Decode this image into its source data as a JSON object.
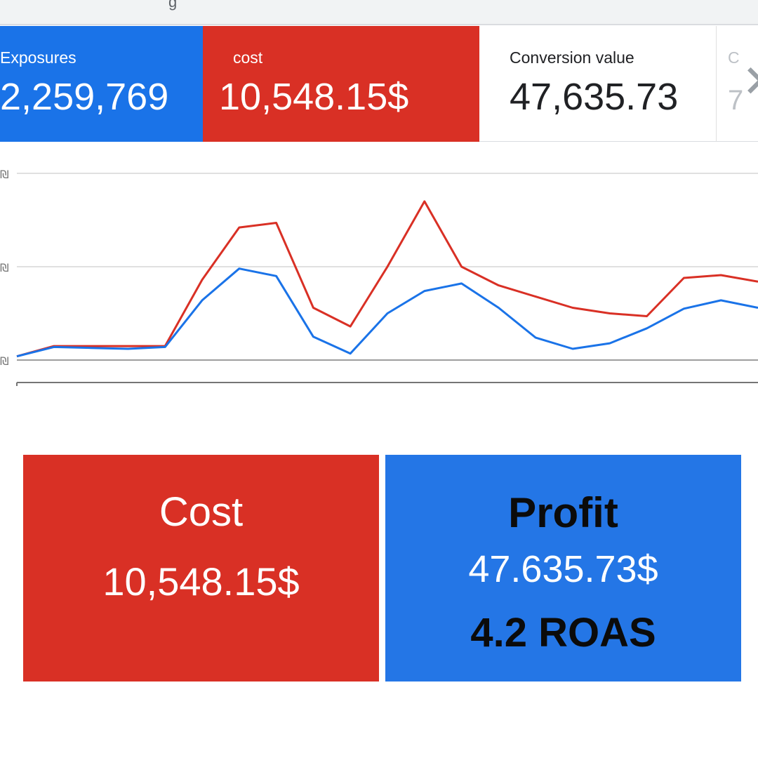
{
  "metrics": {
    "exposures": {
      "label": "Exposures",
      "value": "2,259,769"
    },
    "cost": {
      "label": "cost",
      "value": "10,548.15$"
    },
    "conversion_value": {
      "label": "Conversion value",
      "value": "47,635.73"
    },
    "partial": {
      "label": "C",
      "value": "7"
    }
  },
  "summary": {
    "cost": {
      "title": "Cost",
      "value": "10,548.15$"
    },
    "profit": {
      "title": "Profit",
      "value": "47.635.73$",
      "roas": "4.2 ROAS"
    }
  },
  "chart_data": {
    "type": "line",
    "title": "",
    "xlabel": "",
    "ylabel": "",
    "y_tick_labels": [
      "₪",
      "₪",
      "₪"
    ],
    "ylim": [
      0,
      100
    ],
    "x": [
      0,
      1,
      2,
      3,
      4,
      5,
      6,
      7,
      8,
      9,
      10,
      11,
      12,
      13,
      14,
      15,
      16,
      17,
      18,
      19,
      20
    ],
    "series": [
      {
        "name": "cost",
        "color": "#d93025",
        "values": [
          2,
          7.5,
          7.5,
          7.5,
          7.5,
          43,
          71,
          73.5,
          28,
          18,
          50,
          85,
          50,
          40,
          34,
          28,
          25,
          23.5,
          44,
          45.5,
          42
        ]
      },
      {
        "name": "exposures",
        "color": "#1a73e8",
        "values": [
          2,
          7,
          6.5,
          6,
          7,
          32,
          49,
          45,
          12.5,
          3.5,
          25,
          37,
          41,
          28,
          12,
          6,
          9,
          17,
          27.5,
          32,
          28
        ]
      }
    ]
  },
  "colors": {
    "blue": "#1a73e8",
    "red": "#d93025",
    "card_blue": "#2476e6"
  }
}
